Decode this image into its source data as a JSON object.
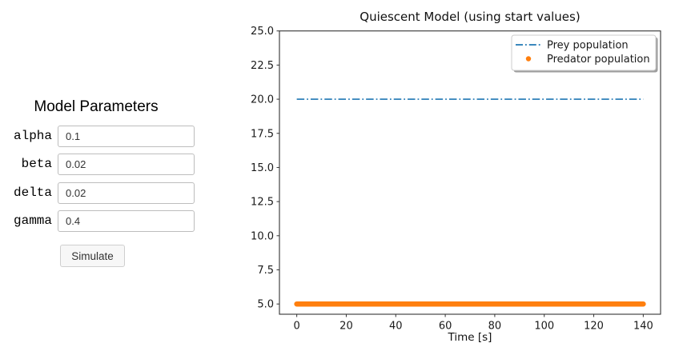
{
  "panel": {
    "title": "Model Parameters",
    "fields": [
      {
        "label": "alpha",
        "value": "0.1"
      },
      {
        "label": "beta",
        "value": "0.02"
      },
      {
        "label": "delta",
        "value": "0.02"
      },
      {
        "label": "gamma",
        "value": "0.4"
      }
    ],
    "simulate_label": "Simulate"
  },
  "chart_data": {
    "type": "line",
    "title": "Quiescent Model (using start values)",
    "xlabel": "Time [s]",
    "ylabel": "",
    "xlim": [
      -7,
      147
    ],
    "ylim": [
      4.25,
      25.0
    ],
    "xticks": [
      0,
      20,
      40,
      60,
      80,
      100,
      120,
      140
    ],
    "yticks": [
      5.0,
      7.5,
      10.0,
      12.5,
      15.0,
      17.5,
      20.0,
      22.5,
      25.0
    ],
    "ytick_labels": [
      "5.0",
      "7.5",
      "10.0",
      "12.5",
      "15.0",
      "17.5",
      "20.0",
      "22.5",
      "25.0"
    ],
    "grid": false,
    "legend_position": "upper right",
    "x_range": [
      0,
      140
    ],
    "series": [
      {
        "name": "Prey population",
        "color": "#1f77b4",
        "linestyle": "dashdot",
        "constant_value": 20.0
      },
      {
        "name": "Predator population",
        "color": "#ff7f0e",
        "linestyle": "dot-markers",
        "constant_value": 5.0
      }
    ],
    "frame_color": "#333333",
    "text_color": "#1a1a1a"
  }
}
